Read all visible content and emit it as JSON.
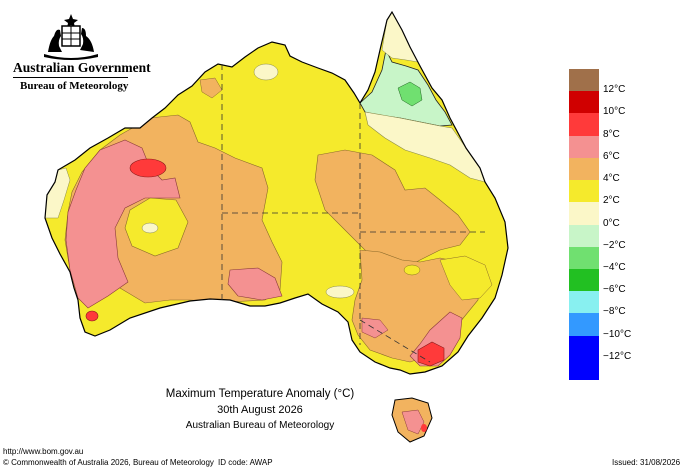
{
  "header": {
    "government": "Australian Government",
    "bureau": "Bureau of Meteorology"
  },
  "map": {
    "title": "Maximum Temperature Anomaly (°C)",
    "date": "30th August 2026",
    "source": "Australian Bureau of Meteorology"
  },
  "legend": {
    "items": [
      {
        "label": "12°C",
        "color": "#a0704a"
      },
      {
        "label": "10°C",
        "color": "#d00000"
      },
      {
        "label": "8°C",
        "color": "#ff3a3a"
      },
      {
        "label": "6°C",
        "color": "#f49191"
      },
      {
        "label": "4°C",
        "color": "#f2b35f"
      },
      {
        "label": "2°C",
        "color": "#f5ea2c"
      },
      {
        "label": "0°C",
        "color": "#fbf7c8"
      },
      {
        "label": "−2°C",
        "color": "#c8f5c8"
      },
      {
        "label": "−4°C",
        "color": "#70e070"
      },
      {
        "label": "−6°C",
        "color": "#22c022"
      },
      {
        "label": "−8°C",
        "color": "#88f0f0"
      },
      {
        "label": "−10°C",
        "color": "#3399ff"
      },
      {
        "label": "−12°C",
        "color": "#0000ff"
      }
    ]
  },
  "footer": {
    "url": "http://www.bom.gov.au",
    "copyright": "© Commonwealth of Australia 2026, Bureau of Meteorology",
    "id_code": "ID code: AWAP",
    "issued": "Issued: 31/08/2026"
  }
}
